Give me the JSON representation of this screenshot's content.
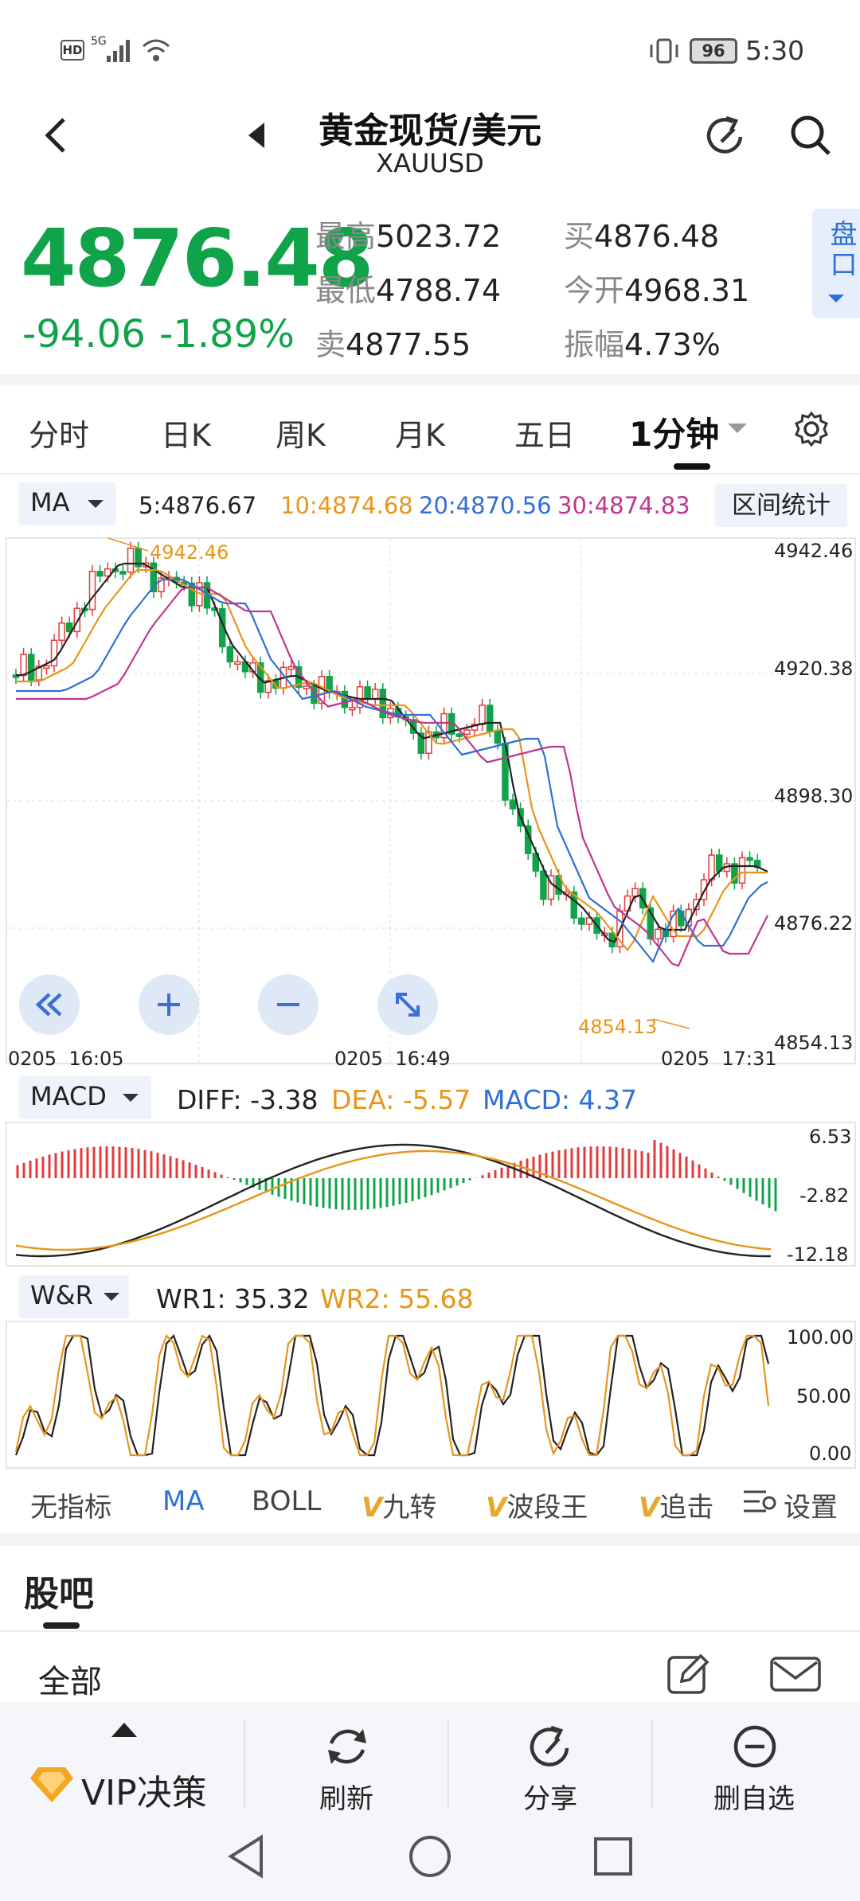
{
  "status_bar": {
    "left_icons": [
      "hd-icon",
      "5g-signal-icon",
      "wifi-icon"
    ],
    "hd": "HD",
    "net": "5G",
    "battery": "96",
    "time": "5:30"
  },
  "header": {
    "title": "黄金现货/美元",
    "subtitle": "XAUUSD"
  },
  "quote": {
    "price": "4876.48",
    "change": "-94.06",
    "change_pct": "-1.89%",
    "high_label": "最高",
    "high": "5023.72",
    "low_label": "最低",
    "low": "4788.74",
    "sell_label": "卖",
    "sell": "4877.55",
    "buy_label": "买",
    "buy": "4876.48",
    "open_label": "今开",
    "open": "4968.31",
    "amp_label": "振幅",
    "amp": "4.73%",
    "panel_label": "盘口"
  },
  "tabs": [
    "分时",
    "日K",
    "周K",
    "月K",
    "五日",
    "1分钟"
  ],
  "ma_bar": {
    "selector": "MA",
    "ma5": "5:4876.67",
    "ma10": "10:4874.68",
    "ma20": "20:4870.56",
    "ma30": "30:4874.83",
    "range_stats": "区间统计"
  },
  "main_chart": {
    "y_labels": [
      "4942.46",
      "4920.38",
      "4898.30",
      "4876.22",
      "4854.13"
    ],
    "high_marker": "4942.46",
    "low_marker": "4854.13",
    "time_labels": [
      "0205  16:05",
      "0205  16:49",
      "0205  17:31"
    ]
  },
  "macd_bar": {
    "selector": "MACD",
    "diff": "DIFF: -3.38",
    "dea": "DEA: -5.57",
    "macd": "MACD: 4.37",
    "y_labels": [
      "6.53",
      "-2.82",
      "-12.18"
    ]
  },
  "wr_bar": {
    "selector": "W&R",
    "wr1": "WR1: 35.32",
    "wr2": "WR2: 55.68",
    "y_labels": [
      "100.00",
      "50.00",
      "0.00"
    ]
  },
  "indicator_tabs": [
    "无指标",
    "MA",
    "BOLL",
    "九转",
    "波段王",
    "追击",
    "设置"
  ],
  "guba": {
    "title": "股吧",
    "filter": "全部"
  },
  "bottom_bar": {
    "vip": "VIP决策",
    "refresh": "刷新",
    "share": "分享",
    "delete": "删自选"
  },
  "colors": {
    "up": "#e23b3b",
    "down": "#11a34a",
    "ma5": "#222222",
    "ma10": "#e8951a",
    "ma20": "#2f6fd6",
    "ma30": "#c0358f",
    "accent": "#2f6fd6"
  }
}
